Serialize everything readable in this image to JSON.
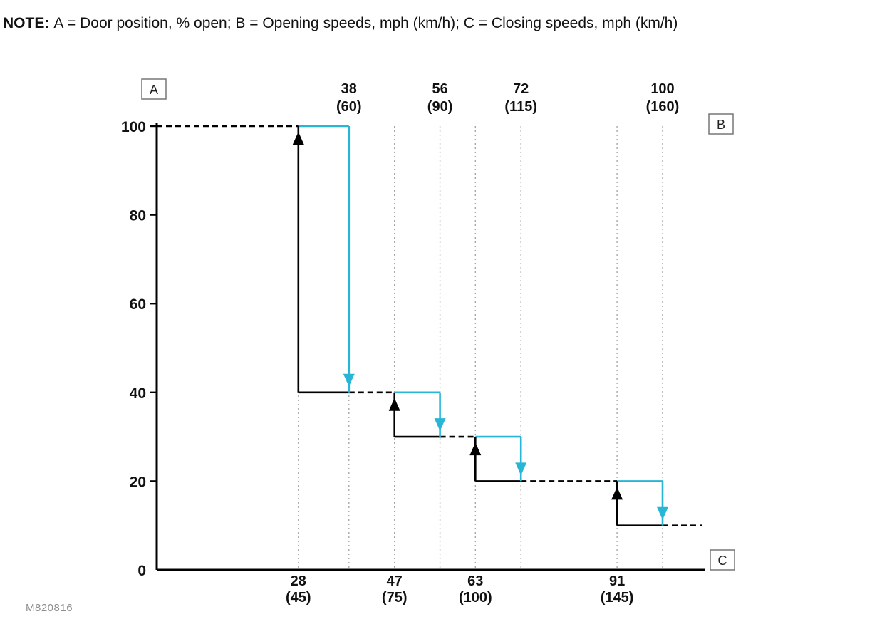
{
  "note": {
    "label": "NOTE:",
    "text": "A = Door position, % open; B = Opening speeds, mph (km/h); C = Closing speeds, mph (km/h)"
  },
  "figure_code": "M820816",
  "chart_data": {
    "type": "step",
    "description": "Door position (% open) hysteresis steps versus vehicle speed; black up-arrows occur at closing speeds (bottom axis C), cyan down-arrows occur at opening speeds (top axis B)",
    "y_axis": {
      "label": "A",
      "meaning": "Door position, % open",
      "ticks": [
        0,
        20,
        40,
        60,
        80,
        100
      ],
      "min": 0,
      "max": 100
    },
    "top_axis": {
      "label": "B",
      "meaning": "Opening speeds, mph (km/h)"
    },
    "bottom_axis": {
      "label": "C",
      "meaning": "Closing speeds, mph (km/h)"
    },
    "steps": [
      {
        "door_open_from_pct": 100,
        "door_open_to_pct": 40,
        "closing_speed": {
          "mph": 28,
          "kmh": 45
        },
        "opening_speed": {
          "mph": 38,
          "kmh": 60
        }
      },
      {
        "door_open_from_pct": 40,
        "door_open_to_pct": 30,
        "closing_speed": {
          "mph": 47,
          "kmh": 75
        },
        "opening_speed": {
          "mph": 56,
          "kmh": 90
        }
      },
      {
        "door_open_from_pct": 30,
        "door_open_to_pct": 20,
        "closing_speed": {
          "mph": 63,
          "kmh": 100
        },
        "opening_speed": {
          "mph": 72,
          "kmh": 115
        }
      },
      {
        "door_open_from_pct": 20,
        "door_open_to_pct": 10,
        "closing_speed": {
          "mph": 91,
          "kmh": 145
        },
        "opening_speed": {
          "mph": 100,
          "kmh": 160
        }
      }
    ],
    "colors": {
      "rise": "#000000",
      "fall": "#29b6d6",
      "grid": "#a8a8a8",
      "axis": "#000000",
      "box_border": "#777777"
    }
  }
}
